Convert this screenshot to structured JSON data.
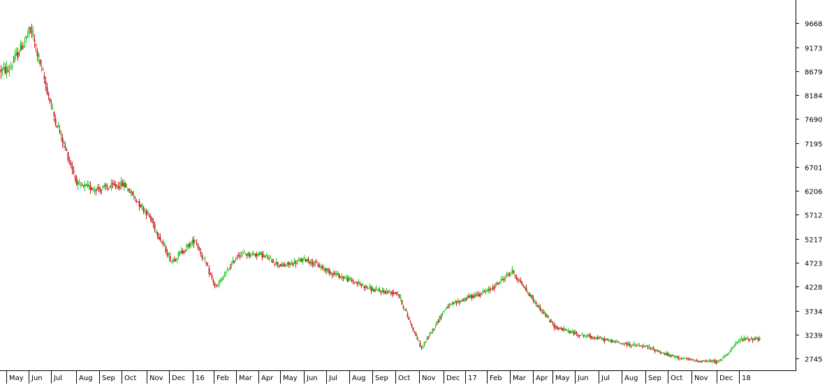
{
  "colors": {
    "background": "#ffffff",
    "axis": "#000000",
    "up_candle": "#22cc22",
    "down_candle": "#cc2222"
  },
  "chart_data": {
    "type": "candlestick",
    "title": "",
    "xlabel": "",
    "ylabel": "",
    "ylim": [
      2500,
      10150
    ],
    "yticks": [
      "9668",
      "9173",
      "8679",
      "8184",
      "7690",
      "7195",
      "6701",
      "6206",
      "5712",
      "5217",
      "4723",
      "4228",
      "3734",
      "3239",
      "2745"
    ],
    "xticks": [
      "May",
      "Jun",
      "Jul",
      "Aug",
      "Sep",
      "Oct",
      "Nov",
      "Dec",
      "16",
      "Feb",
      "Mar",
      "Apr",
      "May",
      "Jun",
      "Jul",
      "Aug",
      "Sep",
      "Oct",
      "Nov",
      "Dec",
      "17",
      "Feb",
      "Mar",
      "Apr",
      "May",
      "Jun",
      "Jul",
      "Aug",
      "Sep",
      "Oct",
      "Nov",
      "Dec",
      "18"
    ],
    "x_range": [
      "May 2015",
      "Jan 2018"
    ],
    "grid": false,
    "legend": "none",
    "price_path": [
      {
        "period": "May 2015",
        "close": 8700
      },
      {
        "period": "Jun 2015",
        "close": 9550
      },
      {
        "period": "Jul 2015",
        "close": 7800
      },
      {
        "period": "Aug 2015",
        "close": 6300
      },
      {
        "period": "Sep 2015",
        "close": 6250
      },
      {
        "period": "Oct 2015",
        "close": 6350
      },
      {
        "period": "Nov 2015",
        "close": 5700
      },
      {
        "period": "Dec 2015",
        "close": 4750
      },
      {
        "period": "Jan 2016",
        "close": 5200
      },
      {
        "period": "Feb 2016",
        "close": 4200
      },
      {
        "period": "Mar 2016",
        "close": 4900
      },
      {
        "period": "Apr 2016",
        "close": 4900
      },
      {
        "period": "May 2016",
        "close": 4650
      },
      {
        "period": "Jun 2016",
        "close": 4800
      },
      {
        "period": "Jul 2016",
        "close": 4550
      },
      {
        "period": "Aug 2016",
        "close": 4350
      },
      {
        "period": "Sep 2016",
        "close": 4150
      },
      {
        "period": "Oct 2016",
        "close": 4100
      },
      {
        "period": "Nov 2016",
        "close": 2950
      },
      {
        "period": "Dec 2016",
        "close": 3800
      },
      {
        "period": "Jan 2017",
        "close": 4000
      },
      {
        "period": "Feb 2017",
        "close": 4150
      },
      {
        "period": "Mar 2017",
        "close": 4550
      },
      {
        "period": "Apr 2017",
        "close": 3900
      },
      {
        "period": "May 2017",
        "close": 3400
      },
      {
        "period": "Jun 2017",
        "close": 3250
      },
      {
        "period": "Jul 2017",
        "close": 3150
      },
      {
        "period": "Aug 2017",
        "close": 3050
      },
      {
        "period": "Sep 2017",
        "close": 2980
      },
      {
        "period": "Oct 2017",
        "close": 2800
      },
      {
        "period": "Nov 2017",
        "close": 2700
      },
      {
        "period": "Dec 2017",
        "close": 2680
      },
      {
        "period": "Jan 2018",
        "close": 3150
      }
    ]
  }
}
